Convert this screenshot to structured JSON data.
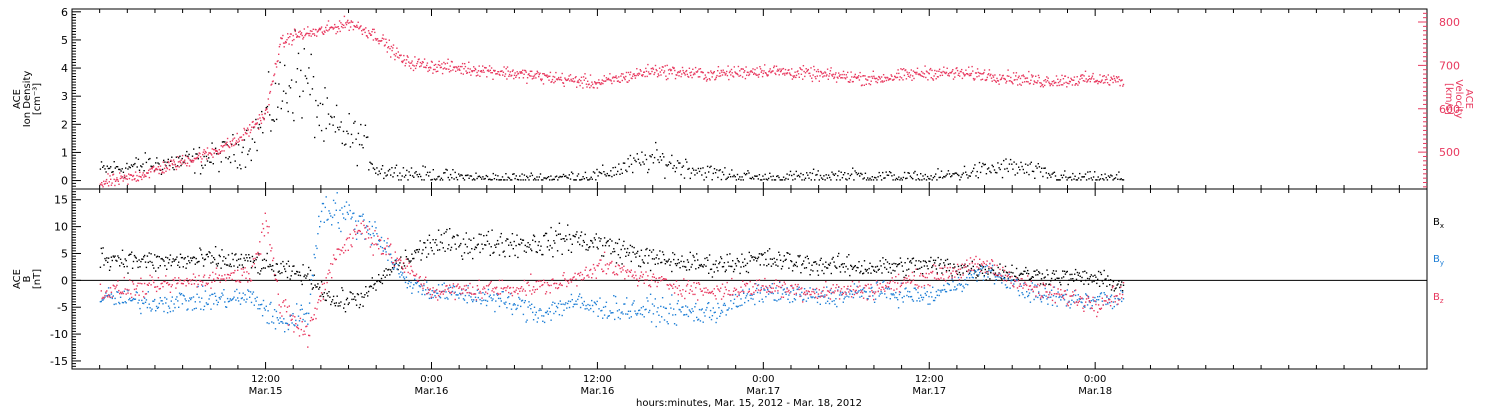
{
  "chart_data": [
    {
      "type": "scatter",
      "panel": "top",
      "ylabel": [
        "ACE",
        "Ion Density",
        "[cm⁻³]"
      ],
      "ylim": [
        -0.3,
        6.1
      ],
      "yticks": [
        0,
        1,
        2,
        3,
        4,
        5,
        6
      ],
      "y2label": [
        "ACE",
        "Velocity",
        "[km/s]"
      ],
      "y2lim": [
        415,
        830
      ],
      "y2ticks": [
        500,
        600,
        700,
        800
      ],
      "y2color": "#e8395f",
      "series": [
        {
          "color": "#000000",
          "axis": "left",
          "points": [
            [
              "2012-03-15 00:00",
              0.4
            ],
            [
              "2012-03-15 02:00",
              0.5
            ],
            [
              "2012-03-15 04:00",
              0.6
            ],
            [
              "2012-03-15 06:00",
              0.7
            ],
            [
              "2012-03-15 08:00",
              0.8
            ],
            [
              "2012-03-15 10:00",
              1.1
            ],
            [
              "2012-03-15 11:00",
              1.5
            ],
            [
              "2012-03-15 13:00",
              3.0
            ],
            [
              "2012-03-15 14:00",
              3.8
            ],
            [
              "2012-03-15 15:00",
              3.5
            ],
            [
              "2012-03-15 16:00",
              2.2
            ],
            [
              "2012-03-15 17:00",
              1.8
            ],
            [
              "2012-03-15 18:00",
              1.6
            ],
            [
              "2012-03-15 19:00",
              1.4
            ],
            [
              "2012-03-15 20:00",
              0.4
            ],
            [
              "2012-03-15 22:00",
              0.3
            ],
            [
              "2012-03-16 00:00",
              0.2
            ],
            [
              "2012-03-16 04:00",
              0.1
            ],
            [
              "2012-03-16 08:00",
              0.1
            ],
            [
              "2012-03-16 12:00",
              0.2
            ],
            [
              "2012-03-16 14:00",
              0.5
            ],
            [
              "2012-03-16 16:00",
              0.8
            ],
            [
              "2012-03-16 20:00",
              0.3
            ],
            [
              "2012-03-17 00:00",
              0.1
            ],
            [
              "2012-03-17 06:00",
              0.2
            ],
            [
              "2012-03-17 12:00",
              0.1
            ],
            [
              "2012-03-17 16:00",
              0.4
            ],
            [
              "2012-03-17 18:00",
              0.5
            ],
            [
              "2012-03-17 22:00",
              0.1
            ],
            [
              "2012-03-18 02:00",
              0.1
            ]
          ]
        },
        {
          "color": "#e8395f",
          "axis": "right",
          "points": [
            [
              "2012-03-15 00:00",
              430
            ],
            [
              "2012-03-15 02:00",
              440
            ],
            [
              "2012-03-15 04:00",
              460
            ],
            [
              "2012-03-15 06:00",
              480
            ],
            [
              "2012-03-15 08:00",
              500
            ],
            [
              "2012-03-15 10:00",
              530
            ],
            [
              "2012-03-15 11:00",
              560
            ],
            [
              "2012-03-15 12:00",
              590
            ],
            [
              "2012-03-15 13:00",
              750
            ],
            [
              "2012-03-15 14:00",
              770
            ],
            [
              "2012-03-15 16:00",
              780
            ],
            [
              "2012-03-15 18:00",
              800
            ],
            [
              "2012-03-15 20:00",
              770
            ],
            [
              "2012-03-15 22:00",
              710
            ],
            [
              "2012-03-16 00:00",
              700
            ],
            [
              "2012-03-16 04:00",
              690
            ],
            [
              "2012-03-16 08:00",
              675
            ],
            [
              "2012-03-16 12:00",
              660
            ],
            [
              "2012-03-16 16:00",
              690
            ],
            [
              "2012-03-16 20:00",
              680
            ],
            [
              "2012-03-17 00:00",
              690
            ],
            [
              "2012-03-17 04:00",
              680
            ],
            [
              "2012-03-17 08:00",
              670
            ],
            [
              "2012-03-17 12:00",
              685
            ],
            [
              "2012-03-17 16:00",
              680
            ],
            [
              "2012-03-17 20:00",
              665
            ],
            [
              "2012-03-18 00:00",
              670
            ],
            [
              "2012-03-18 02:00",
              665
            ]
          ]
        }
      ]
    },
    {
      "type": "scatter",
      "panel": "bottom",
      "ylabel": [
        "ACE",
        "B",
        "[nT]"
      ],
      "ylim": [
        -16.5,
        17
      ],
      "yticks": [
        -15,
        -10,
        -5,
        0,
        5,
        10,
        15
      ],
      "zero_line": true,
      "series": [
        {
          "name": "Bx",
          "label_main": "B",
          "label_sub": "x",
          "color": "#000000",
          "points": [
            [
              "2012-03-15 00:00",
              4.5
            ],
            [
              "2012-03-15 04:00",
              3.5
            ],
            [
              "2012-03-15 08:00",
              4.0
            ],
            [
              "2012-03-15 11:00",
              3.5
            ],
            [
              "2012-03-15 13:00",
              2.0
            ],
            [
              "2012-03-15 15:00",
              1.0
            ],
            [
              "2012-03-15 17:00",
              -4.0
            ],
            [
              "2012-03-15 19:00",
              -3.0
            ],
            [
              "2012-03-15 21:00",
              2.0
            ],
            [
              "2012-03-16 00:00",
              7.0
            ],
            [
              "2012-03-16 04:00",
              7.0
            ],
            [
              "2012-03-16 08:00",
              7.0
            ],
            [
              "2012-03-16 10:00",
              8.0
            ],
            [
              "2012-03-16 12:00",
              7.0
            ],
            [
              "2012-03-16 16:00",
              4.0
            ],
            [
              "2012-03-16 20:00",
              3.0
            ],
            [
              "2012-03-17 00:00",
              4.0
            ],
            [
              "2012-03-17 04:00",
              3.0
            ],
            [
              "2012-03-17 08:00",
              2.5
            ],
            [
              "2012-03-17 12:00",
              3.0
            ],
            [
              "2012-03-17 16:00",
              2.0
            ],
            [
              "2012-03-17 20:00",
              1.0
            ],
            [
              "2012-03-18 00:00",
              0.5
            ],
            [
              "2012-03-18 02:00",
              -1.0
            ]
          ]
        },
        {
          "name": "By",
          "label_main": "B",
          "label_sub": "y",
          "color": "#1f7fd6",
          "points": [
            [
              "2012-03-15 00:00",
              -3.0
            ],
            [
              "2012-03-15 04:00",
              -4.0
            ],
            [
              "2012-03-15 08:00",
              -3.5
            ],
            [
              "2012-03-15 11:00",
              -3.0
            ],
            [
              "2012-03-15 13:00",
              -8.0
            ],
            [
              "2012-03-15 15:00",
              -6.0
            ],
            [
              "2012-03-15 16:00",
              14.0
            ],
            [
              "2012-03-15 18:00",
              12.0
            ],
            [
              "2012-03-15 20:00",
              9.0
            ],
            [
              "2012-03-15 22:00",
              0.0
            ],
            [
              "2012-03-16 00:00",
              -2.0
            ],
            [
              "2012-03-16 04:00",
              -3.0
            ],
            [
              "2012-03-16 08:00",
              -6.0
            ],
            [
              "2012-03-16 10:00",
              -4.0
            ],
            [
              "2012-03-16 12:00",
              -5.0
            ],
            [
              "2012-03-16 16:00",
              -5.5
            ],
            [
              "2012-03-16 20:00",
              -6.0
            ],
            [
              "2012-03-17 00:00",
              -2.0
            ],
            [
              "2012-03-17 04:00",
              -3.0
            ],
            [
              "2012-03-17 08:00",
              -2.0
            ],
            [
              "2012-03-17 12:00",
              -3.0
            ],
            [
              "2012-03-17 16:00",
              2.0
            ],
            [
              "2012-03-17 20:00",
              -3.0
            ],
            [
              "2012-03-18 00:00",
              -3.5
            ],
            [
              "2012-03-18 02:00",
              -3.0
            ]
          ]
        },
        {
          "name": "Bz",
          "label_main": "B",
          "label_sub": "z",
          "color": "#e8395f",
          "points": [
            [
              "2012-03-15 00:00",
              -2.0
            ],
            [
              "2012-03-15 04:00",
              -1.0
            ],
            [
              "2012-03-15 08:00",
              0.5
            ],
            [
              "2012-03-15 11:00",
              1.5
            ],
            [
              "2012-03-15 12:00",
              13.0
            ],
            [
              "2012-03-15 13:00",
              -5.0
            ],
            [
              "2012-03-15 15:00",
              -10.0
            ],
            [
              "2012-03-15 17:00",
              5.0
            ],
            [
              "2012-03-15 19:00",
              10.0
            ],
            [
              "2012-03-15 21:00",
              5.0
            ],
            [
              "2012-03-16 00:00",
              -2.0
            ],
            [
              "2012-03-16 04:00",
              -1.5
            ],
            [
              "2012-03-16 08:00",
              -1.0
            ],
            [
              "2012-03-16 10:00",
              0.0
            ],
            [
              "2012-03-16 12:00",
              3.0
            ],
            [
              "2012-03-16 16:00",
              0.0
            ],
            [
              "2012-03-16 20:00",
              -2.0
            ],
            [
              "2012-03-17 00:00",
              -1.0
            ],
            [
              "2012-03-17 04:00",
              -2.0
            ],
            [
              "2012-03-17 08:00",
              -1.5
            ],
            [
              "2012-03-17 12:00",
              1.0
            ],
            [
              "2012-03-17 16:00",
              3.0
            ],
            [
              "2012-03-17 20:00",
              -2.0
            ],
            [
              "2012-03-18 00:00",
              -4.0
            ],
            [
              "2012-03-18 02:00",
              -2.0
            ]
          ]
        }
      ]
    }
  ],
  "x_axis": {
    "xlim": [
      "2012-03-14 22:00",
      "2012-03-19 00:00"
    ],
    "major_ticks": [
      {
        "t": "2012-03-15 12:00",
        "time": "12:00",
        "date": "Mar.15"
      },
      {
        "t": "2012-03-16 00:00",
        "time": "0:00",
        "date": "Mar.16"
      },
      {
        "t": "2012-03-16 12:00",
        "time": "12:00",
        "date": "Mar.16"
      },
      {
        "t": "2012-03-17 00:00",
        "time": "0:00",
        "date": "Mar.17"
      },
      {
        "t": "2012-03-17 12:00",
        "time": "12:00",
        "date": "Mar.17"
      },
      {
        "t": "2012-03-18 00:00",
        "time": "0:00",
        "date": "Mar.18"
      }
    ],
    "minor_tick_hours": 2,
    "xlabel": "hours:minutes, Mar. 15, 2012 - Mar. 18, 2012"
  }
}
